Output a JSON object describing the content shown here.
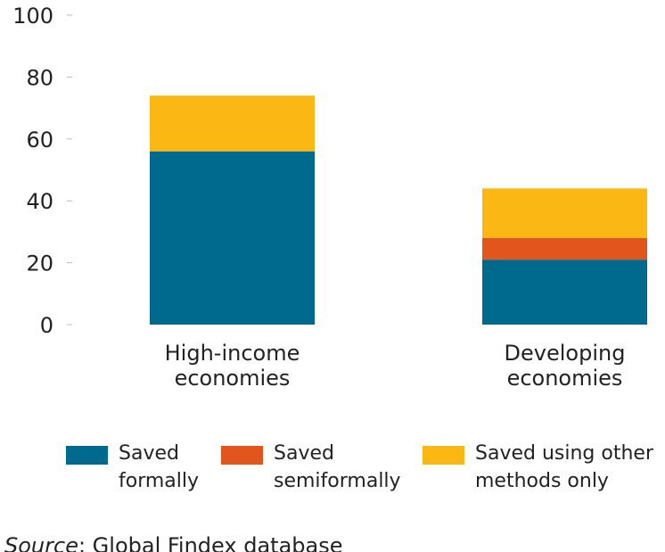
{
  "chart_data": {
    "type": "bar",
    "stacked": true,
    "categories": [
      "High-income economies",
      "Developing economies"
    ],
    "category_lines": [
      [
        "High-income",
        "economies"
      ],
      [
        "Developing",
        "economies"
      ]
    ],
    "series": [
      {
        "name": "Saved formally",
        "legend_lines": [
          "Saved",
          "formally"
        ],
        "color": "#006A8E",
        "values": [
          56,
          21
        ]
      },
      {
        "name": "Saved semiformally",
        "legend_lines": [
          "Saved",
          "semiformally"
        ],
        "color": "#E2561E",
        "values": [
          0,
          7
        ]
      },
      {
        "name": "Saved using other methods only",
        "legend_lines": [
          "Saved using other",
          "methods only"
        ],
        "color": "#FBB814",
        "values": [
          18,
          16
        ]
      }
    ],
    "yticks": [
      0,
      20,
      40,
      60,
      80,
      100
    ],
    "ylim": [
      0,
      100
    ],
    "grid": false,
    "legend_position": "bottom"
  },
  "source": {
    "label": "Source",
    "text": ": Global Findex database"
  }
}
